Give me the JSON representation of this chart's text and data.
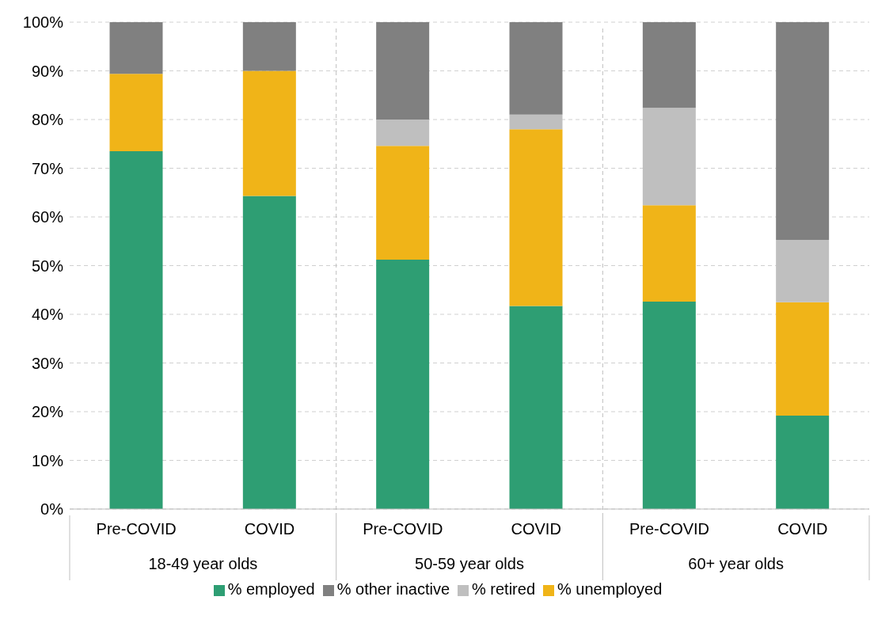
{
  "chart_data": {
    "type": "bar",
    "stacked": true,
    "categories": [
      "Pre-COVID",
      "COVID",
      "Pre-COVID",
      "COVID",
      "Pre-COVID",
      "COVID"
    ],
    "annotations": [
      "18-49 year olds",
      "50-59 year olds",
      "60+ year olds"
    ],
    "series": [
      {
        "name": "% employed",
        "color": "#2e9e73",
        "values": [
          73.5,
          64.3,
          51.2,
          41.7,
          42.6,
          19.2
        ]
      },
      {
        "name": "% unemployed",
        "color": "#f0b418",
        "values": [
          15.9,
          25.7,
          23.4,
          36.3,
          19.8,
          23.3
        ]
      },
      {
        "name": "% retired",
        "color": "#bfbfbf",
        "values": [
          0,
          0,
          5.4,
          3.0,
          20.0,
          12.8
        ]
      },
      {
        "name": "% other inactive",
        "color": "#808080",
        "values": [
          10.6,
          10.0,
          20.0,
          19.0,
          17.6,
          44.7
        ]
      }
    ],
    "ylim": [
      0,
      100
    ],
    "yticks": [
      {
        "value": 0,
        "label": "0%"
      },
      {
        "value": 10,
        "label": "10%"
      },
      {
        "value": 20,
        "label": "20%"
      },
      {
        "value": 30,
        "label": "30%"
      },
      {
        "value": 40,
        "label": "40%"
      },
      {
        "value": 50,
        "label": "50%"
      },
      {
        "value": 60,
        "label": "60%"
      },
      {
        "value": 70,
        "label": "70%"
      },
      {
        "value": 80,
        "label": "80%"
      },
      {
        "value": 90,
        "label": "90%"
      },
      {
        "value": 100,
        "label": "100%"
      }
    ],
    "grid": "y",
    "legend": "bottom"
  }
}
